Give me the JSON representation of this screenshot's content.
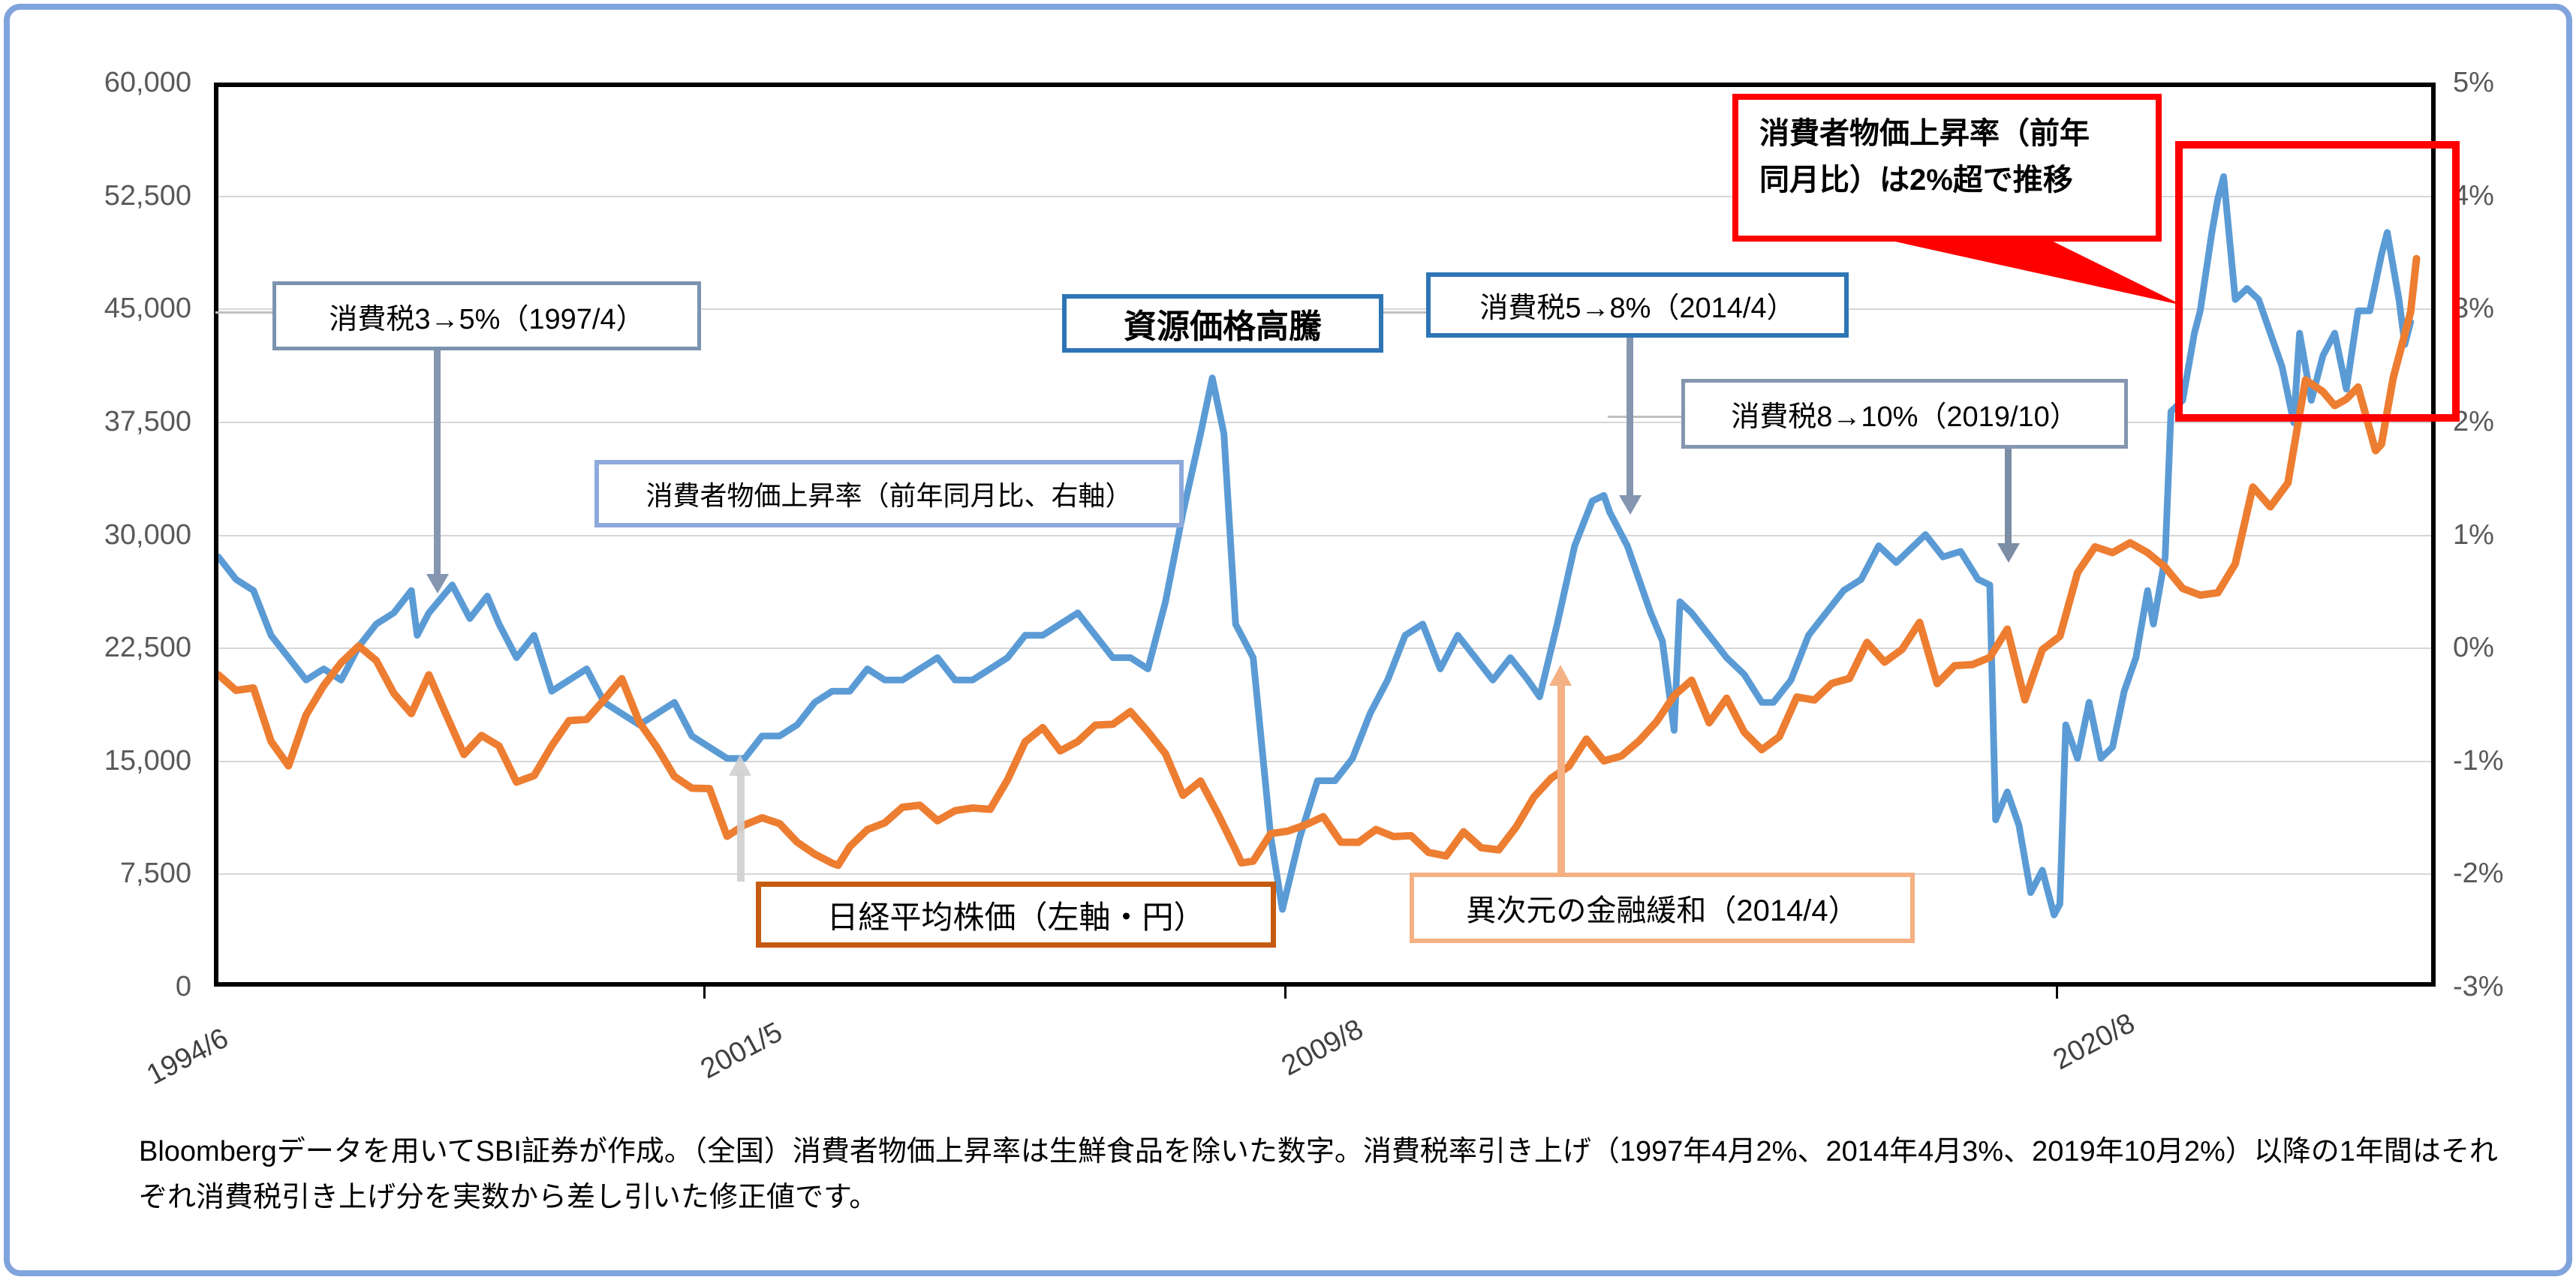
{
  "chart": {
    "left_axis": {
      "labels": [
        "60,000",
        "52,500",
        "45,000",
        "37,500",
        "30,000",
        "22,500",
        "15,000",
        "7,500",
        "0"
      ],
      "min": 0,
      "max": 60000
    },
    "right_axis": {
      "labels": [
        "5%",
        "4%",
        "3%",
        "2%",
        "1%",
        "0%",
        "-1%",
        "-2%",
        "-3%"
      ],
      "min": -3,
      "max": 5
    },
    "x_axis": {
      "labels": [
        "1994/6",
        "2001/5",
        "2009/8",
        "2020/8"
      ]
    },
    "colors": {
      "cpi_line": "#5B9BD5",
      "nikkei_line": "#ED7D31",
      "red_highlight": "#FF0000",
      "tax_box_blue": "#2E75B6",
      "tax_box_slate": "#8496B0",
      "cpi_box_border": "#8EAADB",
      "nikkei_box_border": "#C55A11",
      "easing_box_border": "#F4B183"
    }
  },
  "chart_data": {
    "type": "line",
    "title": "",
    "x_unit": "months since 1994/6",
    "x_total_months": 378.5,
    "xlabel": "",
    "ylabel_left": "円",
    "ylabel_right": "%",
    "grid": true,
    "legend_position": "none",
    "series": [
      {
        "name": "消費者物価上昇率（前年同月比、右軸）",
        "axis": "right",
        "color": "#5B9BD5",
        "points": [
          [
            0,
            0.8
          ],
          [
            3,
            0.6
          ],
          [
            6,
            0.5
          ],
          [
            9,
            0.1
          ],
          [
            12,
            -0.1
          ],
          [
            15,
            -0.3
          ],
          [
            18,
            -0.2
          ],
          [
            21,
            -0.3
          ],
          [
            24,
            0.0
          ],
          [
            27,
            0.2
          ],
          [
            30,
            0.3
          ],
          [
            33,
            0.5
          ],
          [
            34,
            0.1
          ],
          [
            36,
            0.3
          ],
          [
            40,
            0.55
          ],
          [
            43,
            0.25
          ],
          [
            46,
            0.45
          ],
          [
            48,
            0.2
          ],
          [
            51,
            -0.1
          ],
          [
            54,
            0.1
          ],
          [
            57,
            -0.4
          ],
          [
            60,
            -0.3
          ],
          [
            63,
            -0.2
          ],
          [
            66,
            -0.5
          ],
          [
            69,
            -0.6
          ],
          [
            72,
            -0.7
          ],
          [
            75,
            -0.6
          ],
          [
            78,
            -0.5
          ],
          [
            81,
            -0.8
          ],
          [
            84,
            -0.9
          ],
          [
            87,
            -1.0
          ],
          [
            90,
            -1.0
          ],
          [
            93,
            -0.8
          ],
          [
            96,
            -0.8
          ],
          [
            99,
            -0.7
          ],
          [
            102,
            -0.5
          ],
          [
            105,
            -0.4
          ],
          [
            108,
            -0.4
          ],
          [
            111,
            -0.2
          ],
          [
            114,
            -0.3
          ],
          [
            117,
            -0.3
          ],
          [
            120,
            -0.2
          ],
          [
            123,
            -0.1
          ],
          [
            126,
            -0.3
          ],
          [
            129,
            -0.3
          ],
          [
            132,
            -0.2
          ],
          [
            135,
            -0.1
          ],
          [
            138,
            0.1
          ],
          [
            141,
            0.1
          ],
          [
            144,
            0.2
          ],
          [
            147,
            0.3
          ],
          [
            150,
            0.1
          ],
          [
            153,
            -0.1
          ],
          [
            156,
            -0.1
          ],
          [
            159,
            -0.2
          ],
          [
            162,
            0.4
          ],
          [
            165,
            1.2
          ],
          [
            168,
            1.9
          ],
          [
            170,
            2.4
          ],
          [
            172,
            1.9
          ],
          [
            174,
            0.2
          ],
          [
            177,
            -0.1
          ],
          [
            180,
            -1.7
          ],
          [
            182,
            -2.35
          ],
          [
            185,
            -1.7
          ],
          [
            188,
            -1.2
          ],
          [
            191,
            -1.2
          ],
          [
            194,
            -1.0
          ],
          [
            197,
            -0.6
          ],
          [
            200,
            -0.3
          ],
          [
            203,
            0.1
          ],
          [
            206,
            0.2
          ],
          [
            209,
            -0.2
          ],
          [
            212,
            0.1
          ],
          [
            215,
            -0.1
          ],
          [
            218,
            -0.3
          ],
          [
            221,
            -0.1
          ],
          [
            224,
            -0.3
          ],
          [
            226,
            -0.45
          ],
          [
            229,
            0.2
          ],
          [
            232,
            0.9
          ],
          [
            235,
            1.3
          ],
          [
            237,
            1.35
          ],
          [
            238,
            1.2
          ],
          [
            241,
            0.9
          ],
          [
            243,
            0.6
          ],
          [
            245,
            0.3
          ],
          [
            247,
            0.05
          ],
          [
            249,
            -0.75
          ],
          [
            250,
            0.4
          ],
          [
            252,
            0.3
          ],
          [
            255,
            0.1
          ],
          [
            258,
            -0.1
          ],
          [
            261,
            -0.25
          ],
          [
            264,
            -0.5
          ],
          [
            266,
            -0.5
          ],
          [
            269,
            -0.3
          ],
          [
            272,
            0.1
          ],
          [
            275,
            0.3
          ],
          [
            278,
            0.5
          ],
          [
            281,
            0.6
          ],
          [
            284,
            0.9
          ],
          [
            287,
            0.75
          ],
          [
            290,
            0.9
          ],
          [
            292,
            1.0
          ],
          [
            295,
            0.8
          ],
          [
            298,
            0.85
          ],
          [
            301,
            0.6
          ],
          [
            303,
            0.55
          ],
          [
            304,
            -1.55
          ],
          [
            306,
            -1.3
          ],
          [
            308,
            -1.6
          ],
          [
            310,
            -2.2
          ],
          [
            312,
            -2.0
          ],
          [
            314,
            -2.4
          ],
          [
            315,
            -2.3
          ],
          [
            316,
            -0.7
          ],
          [
            318,
            -1.0
          ],
          [
            320,
            -0.5
          ],
          [
            322,
            -1.0
          ],
          [
            324,
            -0.9
          ],
          [
            326,
            -0.4
          ],
          [
            328,
            -0.1
          ],
          [
            330,
            0.5
          ],
          [
            331,
            0.2
          ],
          [
            333,
            0.8
          ],
          [
            334,
            2.1
          ],
          [
            336,
            2.2
          ],
          [
            338,
            2.8
          ],
          [
            339,
            3.0
          ],
          [
            341,
            3.7
          ],
          [
            342,
            4.0
          ],
          [
            343,
            4.2
          ],
          [
            345,
            3.1
          ],
          [
            347,
            3.2
          ],
          [
            349,
            3.1
          ],
          [
            351,
            2.8
          ],
          [
            353,
            2.5
          ],
          [
            355,
            2.0
          ],
          [
            356,
            2.8
          ],
          [
            358,
            2.2
          ],
          [
            360,
            2.6
          ],
          [
            362,
            2.8
          ],
          [
            364,
            2.3
          ],
          [
            366,
            3.0
          ],
          [
            368,
            3.0
          ],
          [
            370,
            3.5
          ],
          [
            371,
            3.7
          ],
          [
            373,
            3.1
          ],
          [
            374,
            2.7
          ],
          [
            375,
            2.9
          ]
        ]
      },
      {
        "name": "日経平均株価（左軸・円）",
        "axis": "left",
        "color": "#ED7D31",
        "points": [
          [
            0,
            20600
          ],
          [
            3,
            19560
          ],
          [
            6,
            19720
          ],
          [
            9,
            16140
          ],
          [
            12,
            14500
          ],
          [
            15,
            17910
          ],
          [
            18,
            19870
          ],
          [
            21,
            21410
          ],
          [
            24,
            22530
          ],
          [
            27,
            21560
          ],
          [
            30,
            19360
          ],
          [
            33,
            18000
          ],
          [
            36,
            20600
          ],
          [
            39,
            17890
          ],
          [
            42,
            15260
          ],
          [
            45,
            16530
          ],
          [
            48,
            15830
          ],
          [
            51,
            13410
          ],
          [
            54,
            13840
          ],
          [
            57,
            15840
          ],
          [
            60,
            17530
          ],
          [
            63,
            17610
          ],
          [
            66,
            18930
          ],
          [
            69,
            20340
          ],
          [
            72,
            17410
          ],
          [
            75,
            15750
          ],
          [
            78,
            13790
          ],
          [
            81,
            13000
          ],
          [
            84,
            12970
          ],
          [
            87,
            9780
          ],
          [
            90,
            10540
          ],
          [
            93,
            11020
          ],
          [
            96,
            10620
          ],
          [
            99,
            9380
          ],
          [
            102,
            8580
          ],
          [
            105,
            7970
          ],
          [
            106,
            7830
          ],
          [
            108,
            9080
          ],
          [
            111,
            10220
          ],
          [
            114,
            10680
          ],
          [
            117,
            11720
          ],
          [
            120,
            11860
          ],
          [
            123,
            10820
          ],
          [
            126,
            11490
          ],
          [
            129,
            11670
          ],
          [
            132,
            11580
          ],
          [
            135,
            13570
          ],
          [
            138,
            16110
          ],
          [
            141,
            17060
          ],
          [
            144,
            15500
          ],
          [
            147,
            16130
          ],
          [
            150,
            17230
          ],
          [
            153,
            17290
          ],
          [
            156,
            18140
          ],
          [
            159,
            16790
          ],
          [
            162,
            15310
          ],
          [
            165,
            12530
          ],
          [
            168,
            13480
          ],
          [
            171,
            11260
          ],
          [
            174,
            8860
          ],
          [
            175,
            7990
          ],
          [
            177,
            8110
          ],
          [
            180,
            9960
          ],
          [
            183,
            10130
          ],
          [
            186,
            10550
          ],
          [
            189,
            11090
          ],
          [
            192,
            9380
          ],
          [
            195,
            9370
          ],
          [
            198,
            10230
          ],
          [
            201,
            9760
          ],
          [
            204,
            9820
          ],
          [
            207,
            8700
          ],
          [
            210,
            8460
          ],
          [
            213,
            10080
          ],
          [
            216,
            9010
          ],
          [
            219,
            8870
          ],
          [
            222,
            10400
          ],
          [
            225,
            12400
          ],
          [
            228,
            13680
          ],
          [
            231,
            14460
          ],
          [
            234,
            16290
          ],
          [
            237,
            14830
          ],
          [
            240,
            15160
          ],
          [
            243,
            16170
          ],
          [
            246,
            17450
          ],
          [
            249,
            19210
          ],
          [
            252,
            20240
          ],
          [
            255,
            17390
          ],
          [
            258,
            19030
          ],
          [
            261,
            16760
          ],
          [
            264,
            15580
          ],
          [
            267,
            16450
          ],
          [
            270,
            19110
          ],
          [
            273,
            18910
          ],
          [
            276,
            20030
          ],
          [
            279,
            20360
          ],
          [
            282,
            22770
          ],
          [
            285,
            21450
          ],
          [
            288,
            22310
          ],
          [
            291,
            24120
          ],
          [
            294,
            20010
          ],
          [
            297,
            21210
          ],
          [
            300,
            21280
          ],
          [
            303,
            21760
          ],
          [
            306,
            23660
          ],
          [
            309,
            18920
          ],
          [
            312,
            22290
          ],
          [
            315,
            23190
          ],
          [
            318,
            27440
          ],
          [
            321,
            29180
          ],
          [
            324,
            28790
          ],
          [
            327,
            29450
          ],
          [
            330,
            28790
          ],
          [
            333,
            27820
          ],
          [
            336,
            26390
          ],
          [
            339,
            25940
          ],
          [
            342,
            26100
          ],
          [
            345,
            28040
          ],
          [
            348,
            33190
          ],
          [
            351,
            31860
          ],
          [
            354,
            33460
          ],
          [
            357,
            40370
          ],
          [
            360,
            39580
          ],
          [
            362,
            38650
          ],
          [
            364,
            39080
          ],
          [
            366,
            39890
          ],
          [
            369,
            35620
          ],
          [
            370,
            36050
          ],
          [
            372,
            40490
          ],
          [
            375,
            44930
          ],
          [
            376,
            48500
          ]
        ]
      }
    ]
  },
  "annotations": {
    "tax1997": "消費税3→5%（1997/4）",
    "cpi_label": "消費者物価上昇率（前年同月比、右軸）",
    "resource": "資源価格高騰",
    "tax2014": "消費税5→8%（2014/4）",
    "tax2019": "消費税8→10%（2019/10）",
    "nikkei_label": "日経平均株価（左軸・円）",
    "easing": "異次元の金融緩和（2014/4）",
    "callout_line1": "消費者物価上昇率（前年",
    "callout_line2": "同月比）は2%超で推移"
  },
  "note": "Bloombergデータを用いてSBI証券が作成。（全国）消費者物価上昇率は生鮮食品を除いた数字。消費税率引き上げ（1997年4月2%、2014年4月3%、2019年10月2%）以降の1年間はそれぞれ消費税引き上げ分を実数から差し引いた修正値です。"
}
